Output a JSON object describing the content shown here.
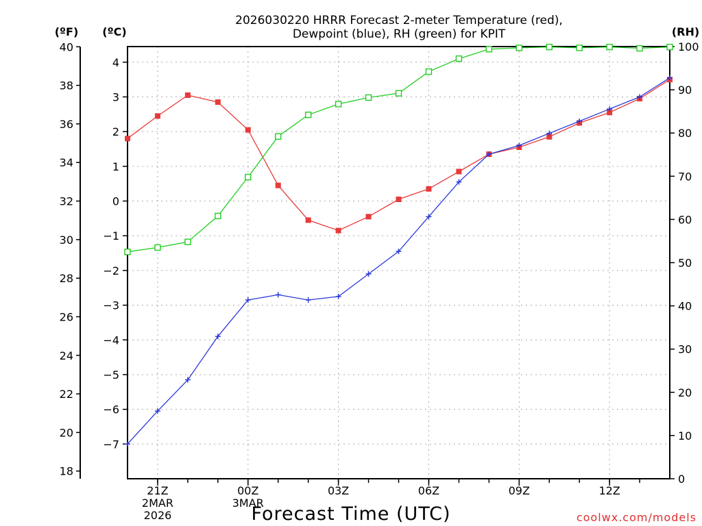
{
  "chart_data": {
    "type": "line",
    "title": [
      "2026030220 HRRR Forecast 2-meter Temperature (red),",
      "Dewpoint (blue), RH (green) for KPIT"
    ],
    "xlabel": "Forecast Time (UTC)",
    "credit": "coolwx.com/models",
    "units": {
      "f": "(ºF)",
      "c": "(ºC)",
      "rh": "(RH)"
    },
    "x_hours": [
      20,
      21,
      22,
      23,
      24,
      25,
      26,
      27,
      28,
      29,
      30,
      31,
      32,
      33,
      34,
      35,
      36,
      37,
      38
    ],
    "xlim": [
      20,
      38
    ],
    "x_ticks": [
      {
        "hour": 21,
        "label": "21Z",
        "sub": [
          "2MAR",
          "2026"
        ]
      },
      {
        "hour": 24,
        "label": "00Z",
        "sub": [
          "3MAR"
        ]
      },
      {
        "hour": 27,
        "label": "03Z",
        "sub": []
      },
      {
        "hour": 30,
        "label": "06Z",
        "sub": []
      },
      {
        "hour": 33,
        "label": "09Z",
        "sub": []
      },
      {
        "hour": 36,
        "label": "12Z",
        "sub": []
      }
    ],
    "y_celsius": {
      "ylim": [
        -8.0,
        4.45
      ],
      "ticks": [
        -7,
        -6,
        -5,
        -4,
        -3,
        -2,
        -1,
        0,
        1,
        2,
        3,
        4
      ]
    },
    "y_fahrenheit": {
      "ylim": [
        17.6,
        40.01
      ],
      "ticks": [
        18,
        20,
        22,
        24,
        26,
        28,
        30,
        32,
        34,
        36,
        38,
        40
      ]
    },
    "y_rh": {
      "ylim": [
        0,
        100
      ],
      "ticks": [
        0,
        10,
        20,
        30,
        40,
        50,
        60,
        70,
        80,
        90,
        100
      ]
    },
    "series": [
      {
        "name": "Temperature",
        "axis": "c",
        "color": "#e83a3a",
        "marker": "filled-square",
        "values": [
          1.8,
          2.45,
          3.05,
          2.85,
          2.05,
          0.45,
          -0.55,
          -0.85,
          -0.45,
          0.05,
          0.35,
          0.85,
          1.35,
          1.55,
          1.85,
          2.25,
          2.55,
          2.95,
          3.5
        ]
      },
      {
        "name": "Dewpoint",
        "axis": "c",
        "color": "#2a3ad8",
        "marker": "plus",
        "values": [
          -7.0,
          -6.05,
          -5.15,
          -3.9,
          -2.85,
          -2.7,
          -2.85,
          -2.75,
          -2.1,
          -1.45,
          -0.45,
          0.55,
          1.35,
          1.6,
          1.95,
          2.3,
          2.65,
          3.0,
          3.55
        ]
      },
      {
        "name": "RH",
        "axis": "rh",
        "color": "#22cc22",
        "marker": "open-square",
        "values": [
          52.5,
          53.5,
          54.8,
          60.8,
          69.8,
          79.2,
          84.2,
          86.7,
          88.2,
          89.2,
          94.2,
          97.2,
          99.4,
          99.7,
          99.9,
          99.7,
          99.9,
          99.6,
          99.9
        ]
      }
    ]
  }
}
